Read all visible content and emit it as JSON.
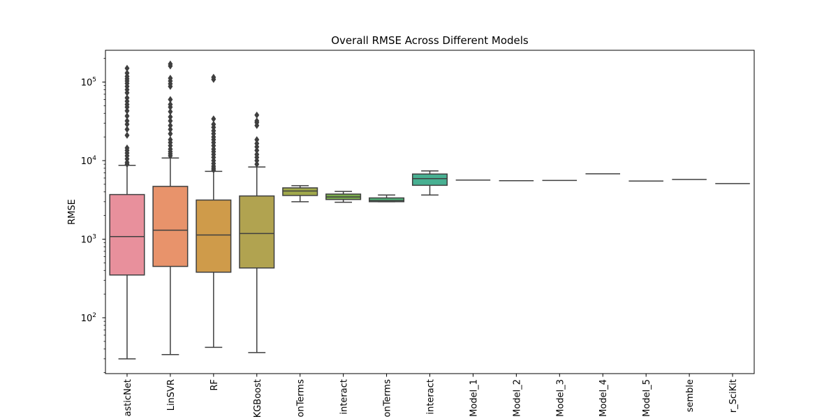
{
  "chart_data": {
    "type": "box",
    "title": "Overall RMSE Across Different Models",
    "ylabel": "RMSE",
    "xlabel": "",
    "yscale": "log",
    "ylim": [
      20,
      260000
    ],
    "grid": false,
    "categories": [
      "asticNet",
      "LinSVR",
      "RF",
      "KGBoost",
      "onTerms",
      "interact",
      "onTerms",
      "interact",
      "Model_1",
      "Model_2",
      "Model_3",
      "Model_4",
      "Model_5",
      "semble",
      "r_SciKit"
    ],
    "y_ticks": [
      {
        "base": "10",
        "exp": "2",
        "value": 100
      },
      {
        "base": "10",
        "exp": "3",
        "value": 1000
      },
      {
        "base": "10",
        "exp": "4",
        "value": 10000
      },
      {
        "base": "10",
        "exp": "5",
        "value": 100000
      }
    ],
    "boxes": [
      {
        "color": "#e8909c",
        "q1": 350,
        "median": 1080,
        "q3": 3700,
        "whisker_low": 30,
        "whisker_high": 8700,
        "outliers": [
          9000,
          9500,
          10500,
          11500,
          12500,
          13500,
          14500,
          21000,
          25000,
          29000,
          32000,
          37000,
          43000,
          48000,
          52000,
          57000,
          63000,
          73000,
          80000,
          88000,
          96000,
          103000,
          110000,
          118000,
          130000,
          150000
        ]
      },
      {
        "color": "#e8936b",
        "q1": 450,
        "median": 1300,
        "q3": 4700,
        "whisker_low": 34,
        "whisker_high": 10800,
        "outliers": [
          11500,
          12200,
          13000,
          14000,
          15500,
          17000,
          18500,
          22000,
          25000,
          28000,
          32000,
          36000,
          42000,
          48000,
          52000,
          60000,
          88000,
          95000,
          103000,
          112000,
          160000,
          170000
        ]
      },
      {
        "color": "#cf9b4a",
        "q1": 380,
        "median": 1130,
        "q3": 3150,
        "whisker_low": 42,
        "whisker_high": 7300,
        "outliers": [
          7600,
          8000,
          8500,
          9200,
          10000,
          11000,
          12000,
          13000,
          14000,
          15500,
          17000,
          18500,
          20000,
          22000,
          24000,
          26500,
          29000,
          34000,
          108000,
          115000
        ]
      },
      {
        "color": "#b1a350",
        "q1": 430,
        "median": 1180,
        "q3": 3550,
        "whisker_low": 36,
        "whisker_high": 8300,
        "outliers": [
          9000,
          10000,
          11000,
          12000,
          13500,
          15000,
          16500,
          18500,
          28000,
          30500,
          32000,
          38000
        ]
      },
      {
        "color": "#a1a94b",
        "q1": 3600,
        "median": 4100,
        "q3": 4500,
        "whisker_low": 3000,
        "whisker_high": 4800,
        "outliers": []
      },
      {
        "color": "#7bad4f",
        "q1": 3200,
        "median": 3450,
        "q3": 3750,
        "whisker_low": 2950,
        "whisker_high": 4050,
        "outliers": []
      },
      {
        "color": "#50b278",
        "q1": 3000,
        "median": 3100,
        "q3": 3350,
        "whisker_low": 3000,
        "whisker_high": 3650,
        "outliers": []
      },
      {
        "color": "#48b092",
        "q1": 4850,
        "median": 5900,
        "q3": 6750,
        "whisker_low": 3650,
        "whisker_high": 7400,
        "outliers": []
      },
      {
        "color": "#4aaca4",
        "single": 5650
      },
      {
        "color": "#4cabb4",
        "single": 5550
      },
      {
        "color": "#4ea8c4",
        "single": 5600
      },
      {
        "color": "#6ea5d6",
        "single": 6800
      },
      {
        "color": "#9b98e0",
        "single": 5500
      },
      {
        "color": "#c88ede",
        "single": 5750
      },
      {
        "color": "#e38dc2",
        "single": 5100
      }
    ]
  }
}
